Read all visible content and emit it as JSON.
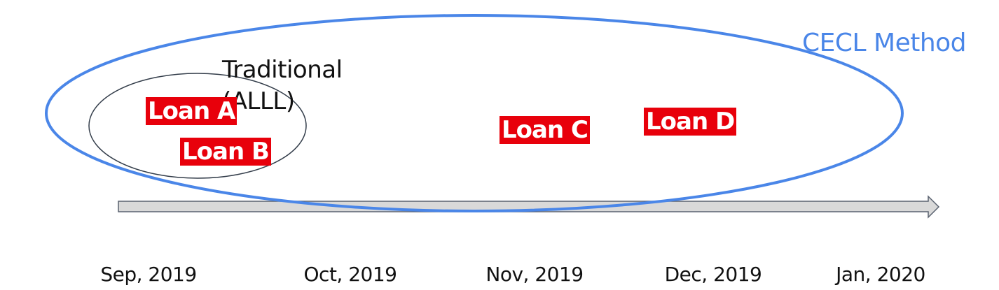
{
  "cecl": {
    "label": "CECL Method",
    "color": "#4a86e8"
  },
  "traditional": {
    "line1": "Traditional",
    "line2": "(ALLL)",
    "color": "#333d4a"
  },
  "loans": [
    {
      "label": "Loan A"
    },
    {
      "label": "Loan B"
    },
    {
      "label": "Loan C"
    },
    {
      "label": "Loan D"
    }
  ],
  "loan_color": "#e8000b",
  "timeline": {
    "ticks": [
      "Sep, 2019",
      "Oct, 2019",
      "Nov, 2019",
      "Dec, 2019",
      "Jan, 2020"
    ],
    "arrow_fill": "#d9d9d9"
  }
}
